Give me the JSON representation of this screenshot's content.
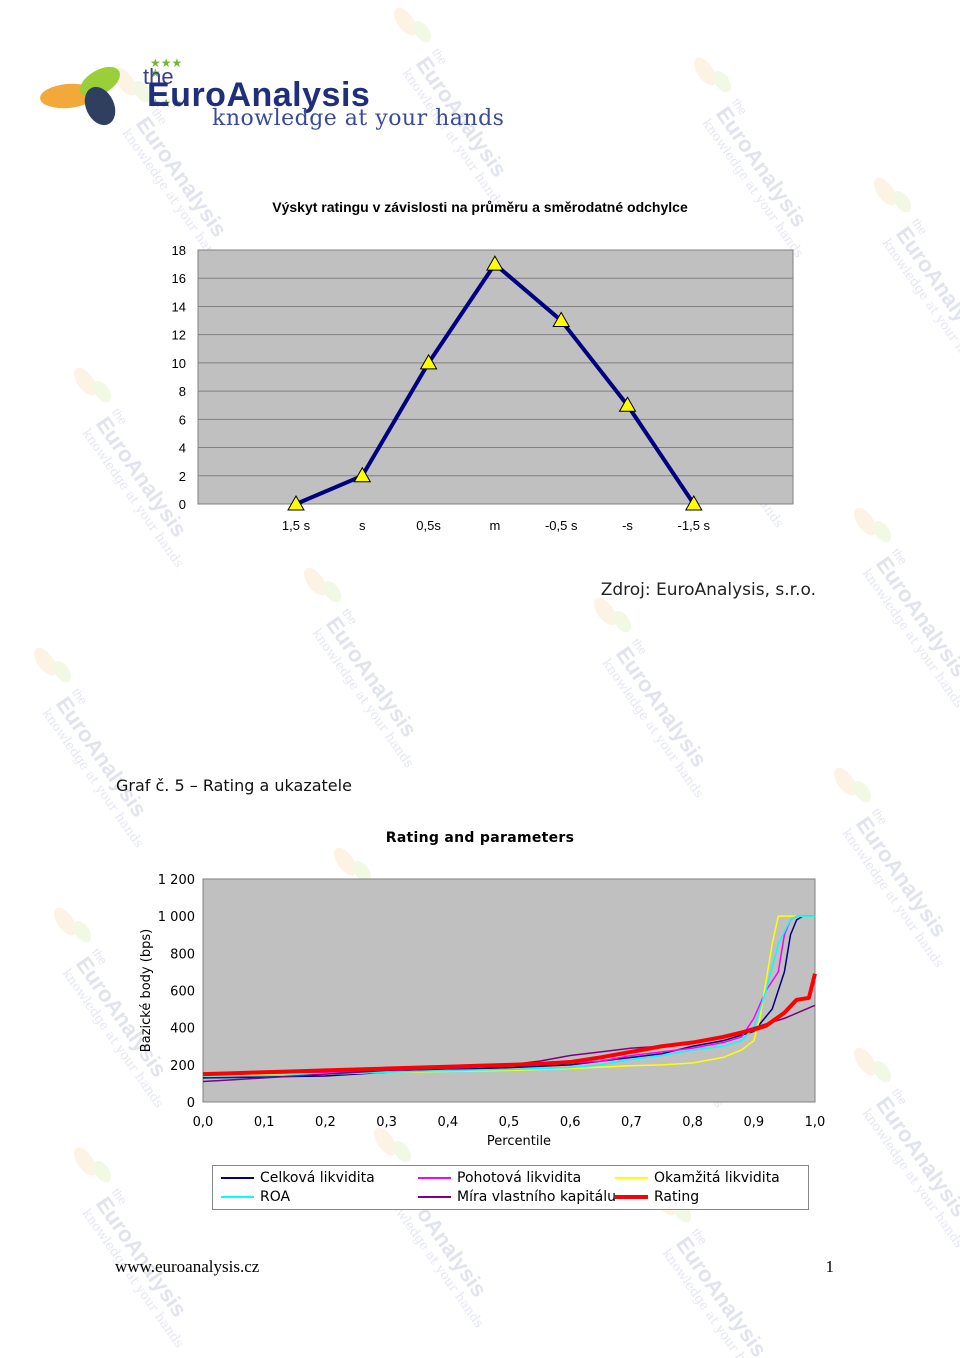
{
  "logo": {
    "the": "the",
    "name": "EuroAnalysis",
    "tagline": "knowledge at your hands"
  },
  "watermark": {
    "text": "the EuroAnalysis knowledge at your hands"
  },
  "chart1": {
    "title": "Výskyt ratingu v závislosti na průměru a směrodatné odchylce",
    "source": "Zdroj: EuroAnalysis, s.r.o."
  },
  "graf_label": "Graf č. 5 – Rating a ukazatele",
  "chart2": {
    "title": "Rating and parameters"
  },
  "colors": {
    "plot_bg": "#c0c0c0",
    "line1": "#000080",
    "marker": "#ffff00",
    "celkova": "#000080",
    "pohotova": "#ff00ff",
    "okamzita": "#ffff00",
    "roa": "#00ffff",
    "mira": "#800080",
    "rating": "#ff0000"
  },
  "chart_data": [
    {
      "type": "line",
      "title": "Výskyt ratingu v závislosti na průměru a směrodatné odchylce",
      "categories": [
        "1,5 s",
        "s",
        "0,5s",
        "m",
        "-0,5 s",
        "-s",
        "-1,5 s"
      ],
      "values": [
        0,
        2,
        10,
        17,
        13,
        7,
        0
      ],
      "ylim": [
        0,
        18
      ],
      "yticks": [
        "0",
        "2",
        "4",
        "6",
        "8",
        "10",
        "12",
        "14",
        "16",
        "18"
      ],
      "grid": true,
      "marker": "triangle"
    },
    {
      "type": "line",
      "title": "Rating and parameters",
      "xlabel": "Percentile",
      "ylabel": "Bazické body (bps)",
      "xlim": [
        0,
        1
      ],
      "ylim": [
        0,
        1200
      ],
      "xticks": [
        "0,0",
        "0,1",
        "0,2",
        "0,3",
        "0,4",
        "0,5",
        "0,6",
        "0,7",
        "0,8",
        "0,9",
        "1,0"
      ],
      "yticks": [
        "0",
        "200",
        "400",
        "600",
        "800",
        "1 000",
        "1 200"
      ],
      "legend_position": "bottom",
      "series": [
        {
          "name": "Celková likvidita",
          "x": [
            0,
            0.05,
            0.1,
            0.2,
            0.3,
            0.4,
            0.5,
            0.6,
            0.65,
            0.7,
            0.75,
            0.8,
            0.85,
            0.9,
            0.93,
            0.95,
            0.96,
            0.97,
            0.98,
            1.0
          ],
          "y": [
            130,
            132,
            135,
            140,
            160,
            175,
            185,
            200,
            220,
            240,
            260,
            300,
            330,
            380,
            500,
            700,
            900,
            980,
            1000,
            1000
          ]
        },
        {
          "name": "Pohotová likvidita",
          "x": [
            0,
            0.05,
            0.1,
            0.2,
            0.3,
            0.4,
            0.5,
            0.55,
            0.6,
            0.65,
            0.7,
            0.75,
            0.8,
            0.85,
            0.88,
            0.9,
            0.92,
            0.94,
            0.95,
            0.96,
            0.97,
            1.0
          ],
          "y": [
            150,
            152,
            155,
            160,
            170,
            180,
            195,
            200,
            210,
            220,
            250,
            270,
            290,
            320,
            350,
            450,
            600,
            700,
            900,
            980,
            1000,
            1000
          ]
        },
        {
          "name": "Okamžitá likvidita",
          "x": [
            0,
            0.1,
            0.2,
            0.3,
            0.4,
            0.5,
            0.6,
            0.7,
            0.75,
            0.8,
            0.85,
            0.88,
            0.9,
            0.91,
            0.92,
            0.93,
            0.94,
            0.95,
            1.0
          ],
          "y": [
            140,
            145,
            150,
            160,
            165,
            170,
            180,
            195,
            200,
            210,
            240,
            280,
            330,
            450,
            650,
            850,
            1000,
            1000,
            1000
          ]
        },
        {
          "name": "ROA",
          "x": [
            0,
            0.1,
            0.2,
            0.3,
            0.4,
            0.5,
            0.6,
            0.65,
            0.7,
            0.75,
            0.8,
            0.85,
            0.88,
            0.9,
            0.92,
            0.94,
            0.96,
            0.97,
            1.0
          ],
          "y": [
            140,
            142,
            150,
            160,
            170,
            175,
            185,
            200,
            230,
            250,
            280,
            300,
            330,
            400,
            600,
            850,
            980,
            1000,
            1000
          ]
        },
        {
          "name": "Míra vlastního kapitálu",
          "x": [
            0,
            0.05,
            0.1,
            0.2,
            0.3,
            0.4,
            0.5,
            0.55,
            0.6,
            0.65,
            0.7,
            0.75,
            0.8,
            0.85,
            0.9,
            0.95,
            1.0
          ],
          "y": [
            110,
            120,
            130,
            150,
            170,
            180,
            200,
            220,
            250,
            270,
            290,
            300,
            320,
            350,
            400,
            450,
            520
          ]
        },
        {
          "name": "Rating",
          "x": [
            0,
            0.05,
            0.1,
            0.15,
            0.2,
            0.25,
            0.3,
            0.35,
            0.4,
            0.45,
            0.5,
            0.55,
            0.6,
            0.65,
            0.7,
            0.75,
            0.8,
            0.85,
            0.9,
            0.92,
            0.95,
            0.97,
            0.99,
            1.0
          ],
          "y": [
            150,
            155,
            160,
            165,
            170,
            175,
            180,
            185,
            190,
            195,
            200,
            205,
            215,
            240,
            270,
            300,
            320,
            350,
            390,
            410,
            480,
            550,
            560,
            690
          ]
        }
      ]
    }
  ],
  "footer": {
    "url": "www.euroanalysis.cz",
    "page": "1"
  }
}
